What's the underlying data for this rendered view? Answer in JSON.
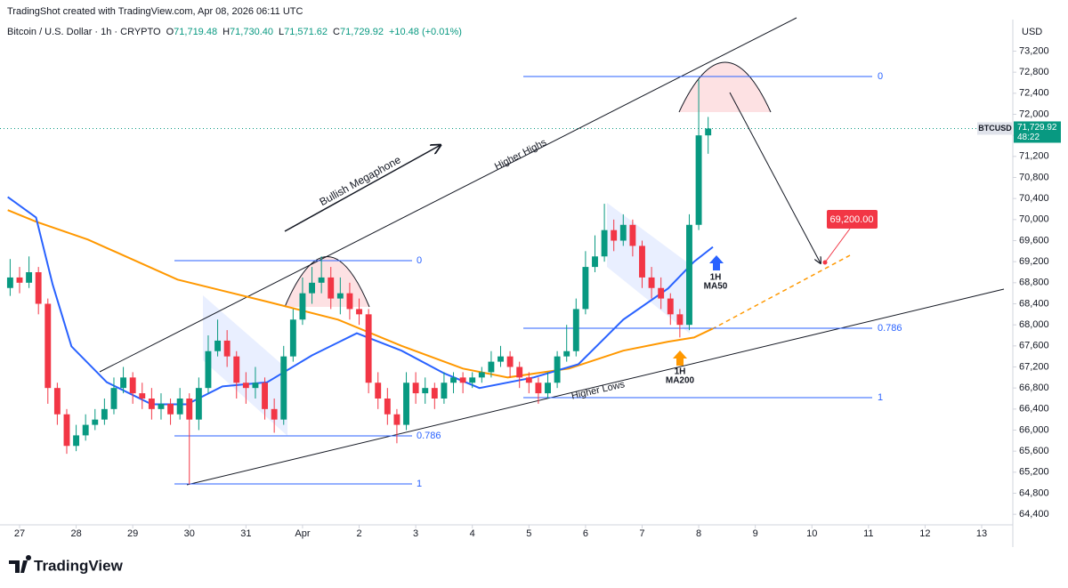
{
  "chart_data": {
    "type": "candlestick",
    "title": "TradingShot created with TradingView.com, Apr 08, 2026 06:11 UTC",
    "subtitle": "Bitcoin / U.S. Dollar · 1h · CRYPTO",
    "ohlc": [
      {
        "label": "O",
        "value": "71,719.48"
      },
      {
        "label": "H",
        "value": "71,730.40"
      },
      {
        "label": "L",
        "value": "71,571.62"
      },
      {
        "label": "C",
        "value": "71,729.92"
      }
    ],
    "change": "+10.48 (+0.01%)",
    "currency": "USD",
    "symbol": "BTCUSD",
    "last_price_label": "71,729.92",
    "countdown": "48:22",
    "brand": "TradingView",
    "up_color": "#089981",
    "down_color": "#f23645",
    "grid": false,
    "x": [
      -4,
      0,
      4,
      8,
      12,
      16,
      20,
      24,
      28,
      32,
      36,
      40,
      44,
      48,
      52,
      56,
      60,
      64,
      68,
      72,
      76,
      80,
      84,
      88,
      92,
      96,
      100,
      104,
      108,
      112,
      116,
      120,
      124,
      128,
      132,
      136,
      140,
      144,
      148,
      152,
      156,
      160,
      164,
      168,
      172,
      176,
      180,
      184,
      188,
      192,
      196,
      200,
      204,
      208,
      212,
      216,
      220,
      224,
      228,
      232,
      236,
      240,
      244,
      248,
      252,
      256,
      260,
      264,
      268,
      272,
      276,
      280,
      284,
      288,
      292
    ],
    "open": [
      68700,
      68900,
      68800,
      69000,
      68400,
      66800,
      66300,
      65700,
      65900,
      66100,
      66200,
      66400,
      66800,
      67000,
      66700,
      66600,
      66400,
      66500,
      66300,
      66600,
      66200,
      66800,
      67500,
      67700,
      67400,
      66900,
      66800,
      66900,
      66400,
      66200,
      67400,
      68100,
      68600,
      68800,
      68900,
      68500,
      68600,
      68300,
      68200,
      66900,
      66600,
      66300,
      66100,
      66900,
      66700,
      66800,
      66600,
      66900,
      67000,
      66900,
      67000,
      67100,
      67300,
      67400,
      67200,
      67000,
      66900,
      66700,
      66900,
      67400,
      67500,
      68300,
      69100,
      69300,
      69800,
      69600,
      69900,
      69500,
      68900,
      68700,
      68500,
      68200,
      68000,
      69900,
      71600
    ],
    "high": [
      69250,
      69100,
      69300,
      69100,
      68500,
      66900,
      66400,
      66100,
      66300,
      66400,
      66600,
      67000,
      67200,
      67100,
      66900,
      66800,
      66700,
      66600,
      66800,
      66700,
      67000,
      67800,
      68100,
      67900,
      67500,
      67100,
      67200,
      67000,
      66600,
      67600,
      68300,
      68900,
      69100,
      69300,
      69100,
      68900,
      68800,
      68500,
      68300,
      67100,
      66800,
      66400,
      67100,
      67100,
      67000,
      66900,
      67100,
      67100,
      67100,
      67100,
      67200,
      67500,
      67600,
      67500,
      67300,
      67100,
      67000,
      67100,
      67500,
      68000,
      68500,
      69400,
      69700,
      70300,
      70000,
      70100,
      70000,
      69600,
      69100,
      68900,
      68600,
      68300,
      70100,
      72660,
      71950
    ],
    "low": [
      68550,
      68600,
      68700,
      68200,
      66500,
      66100,
      65550,
      65600,
      65800,
      66000,
      66100,
      66300,
      66700,
      66500,
      66400,
      66200,
      66200,
      66100,
      66200,
      64970,
      66000,
      66700,
      67400,
      67200,
      66600,
      66500,
      66600,
      66200,
      65950,
      66100,
      67300,
      68000,
      68400,
      68600,
      68300,
      68200,
      68100,
      68000,
      66700,
      66400,
      66100,
      65750,
      66000,
      66500,
      66500,
      66400,
      66500,
      66700,
      66700,
      66800,
      66900,
      67000,
      67200,
      67000,
      66800,
      66700,
      66500,
      66600,
      66800,
      67300,
      67400,
      68200,
      69000,
      69200,
      69400,
      69500,
      69300,
      68700,
      68500,
      68300,
      68000,
      67760,
      67900,
      69800,
      71250
    ],
    "close": [
      68900,
      68800,
      69000,
      68400,
      66800,
      66300,
      65700,
      65900,
      66100,
      66200,
      66400,
      66800,
      67000,
      66700,
      66600,
      66400,
      66500,
      66300,
      66600,
      66200,
      66800,
      67500,
      67700,
      67400,
      66900,
      66800,
      66900,
      66400,
      66200,
      67400,
      68100,
      68600,
      68800,
      68900,
      68500,
      68600,
      68300,
      68200,
      66900,
      66600,
      66300,
      66100,
      66900,
      66700,
      66800,
      66600,
      66900,
      67000,
      66900,
      67000,
      67100,
      67300,
      67400,
      67200,
      67000,
      66900,
      66700,
      66900,
      67400,
      67500,
      68300,
      69100,
      69300,
      69800,
      69600,
      69900,
      69500,
      68900,
      68700,
      68500,
      68200,
      68000,
      69900,
      71600,
      71729.92
    ],
    "indicators": [
      {
        "color": "#ff9800",
        "x": [
          -5,
          7,
          29,
          67,
          105,
          135,
          162,
          188,
          207,
          233,
          256,
          275,
          286,
          294
        ],
        "values": [
          70180,
          69960,
          69620,
          68860,
          68440,
          68100,
          67600,
          67170,
          67000,
          67170,
          67510,
          67680,
          67760,
          67930
        ]
      },
      {
        "color": "#2962ff",
        "x": [
          -5,
          7,
          14,
          22,
          37,
          56,
          71,
          86,
          105,
          124,
          143,
          162,
          180,
          195,
          218,
          237,
          256,
          275,
          286,
          294
        ],
        "values": [
          70430,
          70040,
          68770,
          67590,
          66910,
          66490,
          66490,
          66830,
          66910,
          67420,
          67840,
          67510,
          67080,
          66800,
          67000,
          67250,
          68100,
          68690,
          69200,
          69480
        ]
      }
    ],
    "xlim": [
      -8.3,
      421.2
    ],
    "ylim": [
      64200,
      73800
    ],
    "xticks": [
      {
        "value": 0,
        "label": "27"
      },
      {
        "value": 24,
        "label": "28"
      },
      {
        "value": 48,
        "label": "29"
      },
      {
        "value": 72,
        "label": "30"
      },
      {
        "value": 96,
        "label": "31"
      },
      {
        "value": 120,
        "label": "Apr"
      },
      {
        "value": 144,
        "label": "2"
      },
      {
        "value": 168,
        "label": "3"
      },
      {
        "value": 192,
        "label": "4"
      },
      {
        "value": 216,
        "label": "5"
      },
      {
        "value": 240,
        "label": "6"
      },
      {
        "value": 264,
        "label": "7"
      },
      {
        "value": 288,
        "label": "8"
      },
      {
        "value": 312,
        "label": "9"
      },
      {
        "value": 336,
        "label": "10"
      },
      {
        "value": 360,
        "label": "11"
      },
      {
        "value": 384,
        "label": "12"
      },
      {
        "value": 408,
        "label": "13"
      }
    ],
    "yticks": [
      {
        "value": 64400,
        "label": "64,400"
      },
      {
        "value": 64800,
        "label": "64,800"
      },
      {
        "value": 65200,
        "label": "65,200"
      },
      {
        "value": 65600,
        "label": "65,600"
      },
      {
        "value": 66000,
        "label": "66,000"
      },
      {
        "value": 66400,
        "label": "66,400"
      },
      {
        "value": 66800,
        "label": "66,800"
      },
      {
        "value": 67200,
        "label": "67,200"
      },
      {
        "value": 67600,
        "label": "67,600"
      },
      {
        "value": 68000,
        "label": "68,000"
      },
      {
        "value": 68400,
        "label": "68,400"
      },
      {
        "value": 68800,
        "label": "68,800"
      },
      {
        "value": 69200,
        "label": "69,200"
      },
      {
        "value": 69600,
        "label": "69,600"
      },
      {
        "value": 70000,
        "label": "70,000"
      },
      {
        "value": 70400,
        "label": "70,400"
      },
      {
        "value": 70800,
        "label": "70,800"
      },
      {
        "value": 71200,
        "label": "71,200"
      },
      {
        "value": 71600,
        "label": "71,600"
      },
      {
        "value": 72000,
        "label": "72,000"
      },
      {
        "value": 72400,
        "label": "72,400"
      },
      {
        "value": 72800,
        "label": "72,800"
      },
      {
        "value": 73200,
        "label": "73,200"
      }
    ],
    "annotations": {
      "pattern": "Bullish Megaphone",
      "upper_line": "Higher Highs",
      "lower_line": "Higher Lows",
      "ma50_label": [
        "1H",
        "MA50"
      ],
      "ma200_label": [
        "1H",
        "MA200"
      ],
      "target": "69,200.00",
      "fib_levels_left": [
        0,
        0.786,
        1
      ],
      "fib_levels_right": [
        0,
        0.786,
        1
      ]
    }
  }
}
